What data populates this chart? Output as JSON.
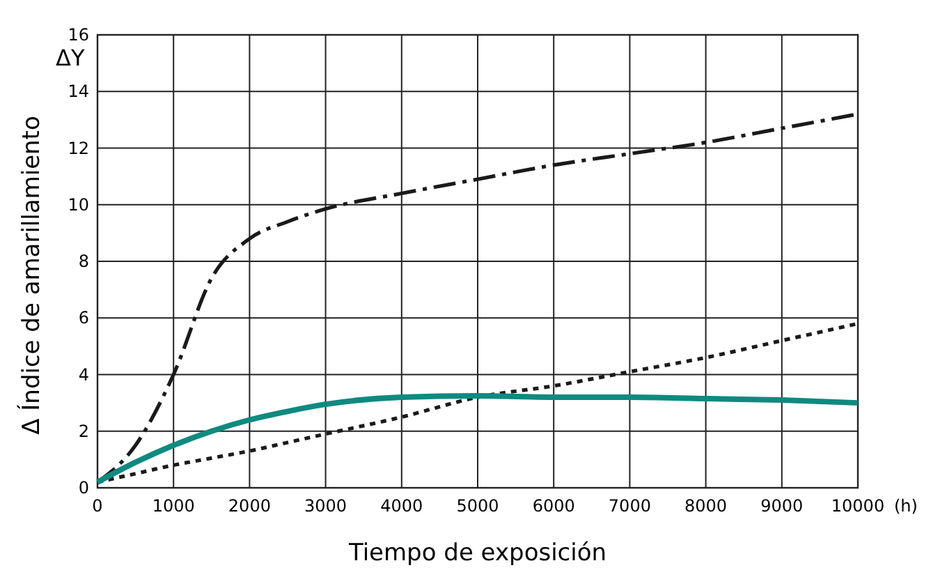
{
  "chart_data": {
    "type": "line",
    "xlabel": "Tiempo de exposición",
    "ylabel": "Δ Índice de amarillamiento",
    "annotations": [
      "ΔY",
      "(h)"
    ],
    "xlim": [
      0,
      10000
    ],
    "xticks": [
      0,
      1000,
      2000,
      3000,
      4000,
      5000,
      6000,
      7000,
      8000,
      9000,
      10000
    ],
    "ylim": [
      0,
      16
    ],
    "yticks": [
      0,
      2,
      4,
      6,
      8,
      10,
      12,
      14,
      16
    ],
    "grid": true,
    "x": [
      0,
      500,
      1000,
      1500,
      2000,
      2500,
      3000,
      4000,
      5000,
      6000,
      7000,
      8000,
      9000,
      10000
    ],
    "series": [
      {
        "color": "#1a1a1a",
        "line_style": "dashed",
        "values": [
          0.2,
          1.5,
          4.0,
          7.4,
          8.8,
          9.4,
          9.85,
          10.4,
          10.9,
          11.4,
          11.8,
          12.2,
          12.7,
          13.2
        ]
      },
      {
        "color": "#1a1a1a",
        "line_style": "dotted",
        "values": [
          0.2,
          0.5,
          0.8,
          1.05,
          1.3,
          1.6,
          1.9,
          2.5,
          3.2,
          3.6,
          4.1,
          4.6,
          5.2,
          5.8
        ]
      },
      {
        "color": "#0f8a80",
        "line_style": "solid",
        "values": [
          0.2,
          0.9,
          1.5,
          2.0,
          2.4,
          2.7,
          2.95,
          3.2,
          3.25,
          3.2,
          3.2,
          3.15,
          3.1,
          3.0
        ]
      }
    ]
  }
}
